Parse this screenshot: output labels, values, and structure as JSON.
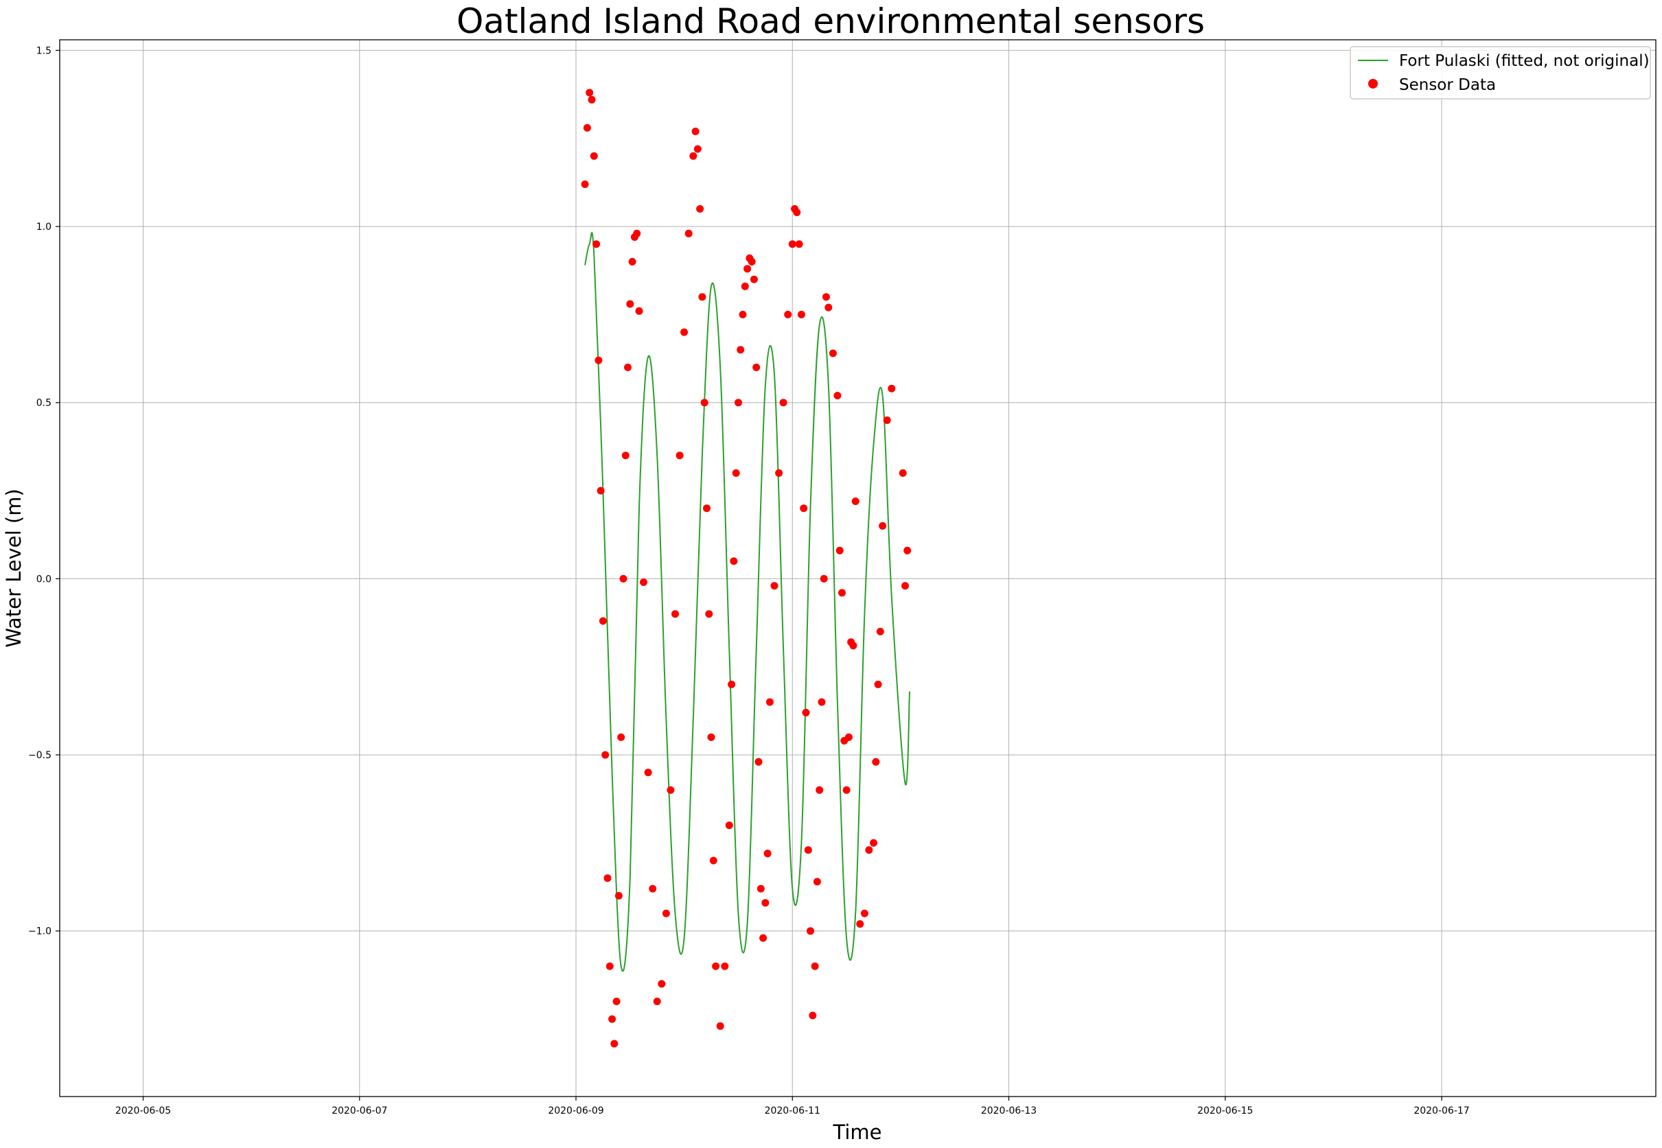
{
  "chart_data": {
    "type": "scatter",
    "title": "Oatland Island Road environmental sensors",
    "xlabel": "Time",
    "ylabel": "Water Level (m)",
    "xlim": [
      "2020-06-04T05:30",
      "2020-06-18T23:30"
    ],
    "ylim": [
      -1.47,
      1.53
    ],
    "grid": true,
    "legend_position": "top-right",
    "x_ticks": [
      "2020-06-05",
      "2020-06-07",
      "2020-06-09",
      "2020-06-11",
      "2020-06-13",
      "2020-06-15",
      "2020-06-17"
    ],
    "y_ticks": [
      1.5,
      1.0,
      0.5,
      0.0,
      -0.5,
      -1.0
    ],
    "y_tick_labels": [
      "1.5",
      "1.0",
      "0.5",
      "0.0",
      "−0.5",
      "−1.0"
    ],
    "colors": {
      "line": "#2ca02c",
      "scatter": "#ff0000",
      "grid": "#b0b0b0"
    },
    "series": [
      {
        "name": "Fort Pulaski (fitted, not original)",
        "kind": "line",
        "x": [
          "2020-06-09T02:00",
          "2020-06-09T03:00",
          "2020-06-09T04:00",
          "2020-06-09T06:00",
          "2020-06-09T08:00",
          "2020-06-09T10:00",
          "2020-06-09T12:00",
          "2020-06-09T14:00",
          "2020-06-09T16:00",
          "2020-06-09T18:00",
          "2020-06-09T20:00",
          "2020-06-09T22:00",
          "2020-06-10T00:00",
          "2020-06-10T02:00",
          "2020-06-10T04:00",
          "2020-06-10T06:00",
          "2020-06-10T08:00",
          "2020-06-10T10:00",
          "2020-06-10T12:00",
          "2020-06-10T14:00",
          "2020-06-10T16:00",
          "2020-06-10T18:00",
          "2020-06-10T20:00",
          "2020-06-10T22:00",
          "2020-06-11T00:00",
          "2020-06-11T02:00",
          "2020-06-11T04:00",
          "2020-06-11T06:00",
          "2020-06-11T08:00",
          "2020-06-11T10:00",
          "2020-06-11T12:00",
          "2020-06-11T14:00",
          "2020-06-11T16:00",
          "2020-06-11T18:00",
          "2020-06-11T20:00",
          "2020-06-11T22:00",
          "2020-06-12T01:00",
          "2020-06-12T02:00"
        ],
        "y": [
          0.89,
          0.95,
          0.92,
          0.25,
          -0.55,
          -1.1,
          -0.85,
          0.2,
          0.63,
          0.35,
          -0.4,
          -0.95,
          -1.02,
          -0.4,
          0.35,
          0.83,
          0.6,
          -0.2,
          -0.95,
          -0.98,
          -0.2,
          0.55,
          0.58,
          -0.2,
          -0.88,
          -0.75,
          0.2,
          0.72,
          0.55,
          -0.35,
          -1.02,
          -0.95,
          -0.1,
          0.38,
          0.52,
          -0.05,
          -0.58,
          -0.32
        ]
      },
      {
        "name": "Sensor Data",
        "kind": "scatter",
        "x": [
          "2020-06-09T02:00",
          "2020-06-09T02:30",
          "2020-06-09T03:00",
          "2020-06-09T03:30",
          "2020-06-09T04:00",
          "2020-06-09T04:30",
          "2020-06-09T05:00",
          "2020-06-09T05:30",
          "2020-06-09T06:00",
          "2020-06-09T06:30",
          "2020-06-09T07:00",
          "2020-06-09T07:30",
          "2020-06-09T08:00",
          "2020-06-09T08:30",
          "2020-06-09T09:00",
          "2020-06-09T09:30",
          "2020-06-09T10:00",
          "2020-06-09T10:30",
          "2020-06-09T11:00",
          "2020-06-09T11:30",
          "2020-06-09T12:00",
          "2020-06-09T12:30",
          "2020-06-09T13:00",
          "2020-06-09T13:30",
          "2020-06-09T14:00",
          "2020-06-09T15:00",
          "2020-06-09T16:00",
          "2020-06-09T17:00",
          "2020-06-09T18:00",
          "2020-06-09T19:00",
          "2020-06-09T20:00",
          "2020-06-09T21:00",
          "2020-06-09T22:00",
          "2020-06-09T23:00",
          "2020-06-10T00:00",
          "2020-06-10T01:00",
          "2020-06-10T02:00",
          "2020-06-10T02:30",
          "2020-06-10T03:00",
          "2020-06-10T03:30",
          "2020-06-10T04:00",
          "2020-06-10T04:30",
          "2020-06-10T05:00",
          "2020-06-10T05:30",
          "2020-06-10T06:00",
          "2020-06-10T06:30",
          "2020-06-10T07:00",
          "2020-06-10T08:00",
          "2020-06-10T09:00",
          "2020-06-10T10:00",
          "2020-06-10T10:30",
          "2020-06-10T11:00",
          "2020-06-10T11:30",
          "2020-06-10T12:00",
          "2020-06-10T12:30",
          "2020-06-10T13:00",
          "2020-06-10T13:30",
          "2020-06-10T14:00",
          "2020-06-10T14:30",
          "2020-06-10T15:00",
          "2020-06-10T15:30",
          "2020-06-10T16:00",
          "2020-06-10T16:30",
          "2020-06-10T17:00",
          "2020-06-10T17:30",
          "2020-06-10T18:00",
          "2020-06-10T18:30",
          "2020-06-10T19:00",
          "2020-06-10T20:00",
          "2020-06-10T21:00",
          "2020-06-10T22:00",
          "2020-06-10T23:00",
          "2020-06-11T00:00",
          "2020-06-11T00:30",
          "2020-06-11T01:00",
          "2020-06-11T01:30",
          "2020-06-11T02:00",
          "2020-06-11T02:30",
          "2020-06-11T03:00",
          "2020-06-11T03:30",
          "2020-06-11T04:00",
          "2020-06-11T04:30",
          "2020-06-11T05:00",
          "2020-06-11T05:30",
          "2020-06-11T06:00",
          "2020-06-11T06:30",
          "2020-06-11T07:00",
          "2020-06-11T07:30",
          "2020-06-11T08:00",
          "2020-06-11T09:00",
          "2020-06-11T10:00",
          "2020-06-11T10:30",
          "2020-06-11T11:00",
          "2020-06-11T11:30",
          "2020-06-11T12:00",
          "2020-06-11T12:30",
          "2020-06-11T13:00",
          "2020-06-11T13:30",
          "2020-06-11T14:00",
          "2020-06-11T15:00",
          "2020-06-11T16:00",
          "2020-06-11T17:00",
          "2020-06-11T18:00",
          "2020-06-11T18:30",
          "2020-06-11T19:00",
          "2020-06-11T19:30",
          "2020-06-11T20:00",
          "2020-06-11T21:00",
          "2020-06-11T22:00",
          "2020-06-12T00:30",
          "2020-06-12T01:00",
          "2020-06-12T01:30"
        ],
        "y": [
          1.12,
          1.28,
          1.38,
          1.36,
          1.2,
          0.95,
          0.62,
          0.25,
          -0.12,
          -0.5,
          -0.85,
          -1.1,
          -1.25,
          -1.32,
          -1.2,
          -0.9,
          -0.45,
          0.0,
          0.35,
          0.6,
          0.78,
          0.9,
          0.97,
          0.98,
          0.76,
          -0.01,
          -0.55,
          -0.88,
          -1.2,
          -1.15,
          -0.95,
          -0.6,
          -0.1,
          0.35,
          0.7,
          0.98,
          1.2,
          1.27,
          1.22,
          1.05,
          0.8,
          0.5,
          0.2,
          -0.1,
          -0.45,
          -0.8,
          -1.1,
          -1.27,
          -1.1,
          -0.7,
          -0.3,
          0.05,
          0.3,
          0.5,
          0.65,
          0.75,
          0.83,
          0.88,
          0.91,
          0.9,
          0.85,
          0.6,
          -0.52,
          -0.88,
          -1.02,
          -0.92,
          -0.78,
          -0.35,
          -0.02,
          0.3,
          0.5,
          0.75,
          0.95,
          1.05,
          1.04,
          0.95,
          0.75,
          0.2,
          -0.38,
          -0.77,
          -1.0,
          -1.24,
          -1.1,
          -0.86,
          -0.6,
          -0.35,
          0.0,
          0.8,
          0.77,
          0.64,
          0.52,
          0.08,
          -0.04,
          -0.46,
          -0.6,
          -0.45,
          -0.18,
          -0.19,
          0.22,
          -0.98,
          -0.95,
          -0.77,
          -0.75,
          -0.52,
          -0.3,
          -0.15,
          0.15,
          0.45,
          0.54,
          0.3,
          -0.02,
          0.08
        ]
      }
    ]
  }
}
